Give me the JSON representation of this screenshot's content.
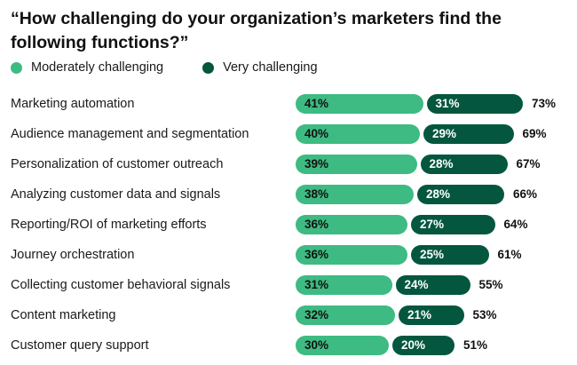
{
  "chart_data": {
    "type": "bar",
    "orientation": "horizontal",
    "stacked": true,
    "title": "“How challenging do your organization’s marketers find the following functions?”",
    "legend_position": "top-left",
    "grid": false,
    "categories": [
      "Marketing automation",
      "Audience management and segmentation",
      "Personalization of customer outreach",
      "Analyzing customer data and signals",
      "Reporting/ROI of marketing efforts",
      "Journey orchestration",
      "Collecting customer behavioral signals",
      "Content marketing",
      "Customer query support"
    ],
    "series": [
      {
        "name": "Moderately challenging",
        "color": "#3dbb82",
        "values": [
          41,
          40,
          39,
          38,
          36,
          36,
          31,
          32,
          30
        ]
      },
      {
        "name": "Very challenging",
        "color": "#04573e",
        "values": [
          31,
          29,
          28,
          28,
          27,
          25,
          24,
          21,
          20
        ]
      }
    ],
    "totals": [
      73,
      69,
      67,
      66,
      64,
      61,
      55,
      53,
      51
    ],
    "value_suffix": "%"
  }
}
